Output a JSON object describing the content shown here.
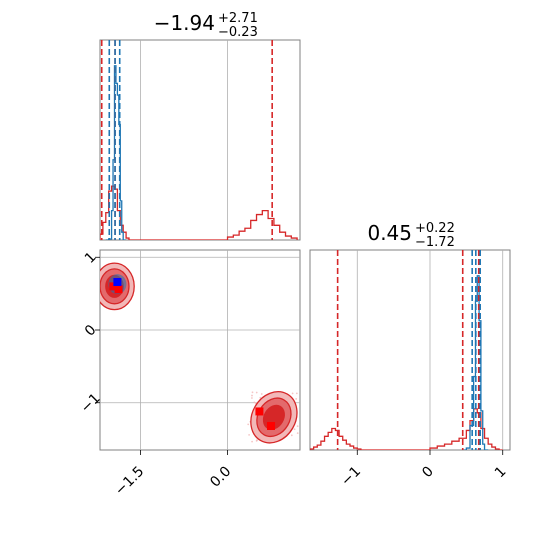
{
  "chart_data": [
    {
      "type": "histogram",
      "panel": "top-left",
      "title": {
        "main": "−1.94",
        "upper": "+2.71",
        "lower": "−0.23"
      },
      "xlim": [
        -2.2,
        1.25
      ],
      "grid": true,
      "blue_hist": {
        "bin_edges": [
          -2.1,
          -2.05,
          -2.0,
          -1.975,
          -1.95,
          -1.925,
          -1.9,
          -1.875,
          -1.85,
          -1.825,
          -1.8,
          -1.75
        ],
        "counts": [
          0,
          1,
          30,
          82,
          178,
          160,
          148,
          118,
          40,
          8,
          0
        ]
      },
      "red_hist": {
        "bin_edges": [
          -2.25,
          -2.2,
          -2.15,
          -2.1,
          -2.05,
          -2.0,
          -1.95,
          -1.9,
          -1.85,
          -1.8,
          -1.75,
          -1.7,
          0.0,
          0.1,
          0.2,
          0.3,
          0.4,
          0.5,
          0.6,
          0.7,
          0.8,
          0.9,
          1.0,
          1.1,
          1.2
        ],
        "counts": [
          1,
          6,
          18,
          28,
          50,
          55,
          52,
          30,
          15,
          8,
          2,
          0,
          3,
          5,
          9,
          12,
          20,
          26,
          30,
          22,
          15,
          8,
          4,
          2
        ]
      },
      "red_quantiles": [
        -2.17,
        -1.94,
        0.77
      ],
      "blue_quantiles": [
        -2.04,
        -1.94,
        -1.86
      ],
      "ymax": 190
    },
    {
      "type": "scatter",
      "panel": "bottom-left",
      "xlim": [
        -2.2,
        1.25
      ],
      "ylim": [
        -1.65,
        1.1
      ],
      "xticks": [
        -1.5,
        0.0
      ],
      "xtick_labels": [
        "−1.5",
        "0.0"
      ],
      "yticks": [
        -1,
        0,
        1
      ],
      "ytick_labels": [
        "−1",
        "0",
        "1"
      ],
      "grid": true,
      "red_modes": [
        {
          "x": -1.95,
          "y": 0.6
        },
        {
          "x": 0.8,
          "y": -1.2
        }
      ],
      "red_points": [
        [
          -1.97,
          0.6
        ],
        [
          -1.88,
          0.56
        ],
        [
          0.55,
          -1.12
        ],
        [
          0.75,
          -1.32
        ]
      ],
      "blue_points": [
        [
          -1.9,
          0.66
        ]
      ],
      "blue_mode": {
        "x": -1.9,
        "y": 0.63
      }
    },
    {
      "type": "histogram",
      "panel": "bottom-right",
      "title": {
        "main": "0.45",
        "upper": "+0.22",
        "lower": "−1.72"
      },
      "xlim": [
        -1.65,
        1.1
      ],
      "xticks": [
        -1,
        0,
        1
      ],
      "xtick_labels": [
        "−1",
        "0",
        "1"
      ],
      "grid": true,
      "blue_hist": {
        "bin_edges": [
          0.45,
          0.5,
          0.55,
          0.6,
          0.625,
          0.65,
          0.675,
          0.7,
          0.725,
          0.75,
          0.8
        ],
        "counts": [
          0,
          2,
          25,
          75,
          152,
          178,
          132,
          40,
          6,
          0
        ]
      },
      "red_hist": {
        "bin_edges": [
          -1.65,
          -1.6,
          -1.55,
          -1.5,
          -1.45,
          -1.4,
          -1.35,
          -1.3,
          -1.25,
          -1.2,
          -1.15,
          -1.1,
          -1.05,
          -1.0,
          -0.95,
          -0.9,
          0.0,
          0.1,
          0.2,
          0.3,
          0.4,
          0.5,
          0.55,
          0.6,
          0.65,
          0.7,
          0.75,
          0.8,
          0.85,
          0.9,
          0.95,
          1.0
        ],
        "counts": [
          1,
          3,
          5,
          9,
          14,
          18,
          22,
          20,
          14,
          10,
          6,
          4,
          2,
          1,
          0,
          0,
          2,
          4,
          6,
          9,
          12,
          20,
          30,
          42,
          38,
          22,
          12,
          6,
          3,
          1,
          0
        ]
      },
      "red_quantiles": [
        -1.27,
        0.45,
        0.67
      ],
      "blue_quantiles": [
        0.58,
        0.63,
        0.69
      ],
      "ymax": 190
    }
  ],
  "colors": {
    "red": "#d62728",
    "red_fill_light": "#f2b8b8",
    "red_fill_mid": "#e36a6c",
    "red_fill_dark": "#d62728",
    "blue": "#1f77b4",
    "blue_point": "#0000ff",
    "red_point": "#ff0000",
    "grid": "#b0b0b0",
    "axis": "#808080"
  }
}
